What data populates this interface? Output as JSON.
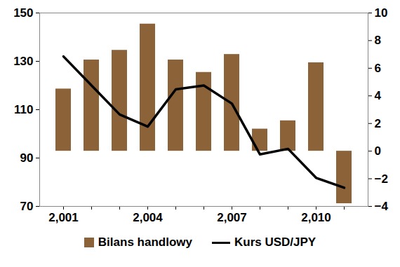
{
  "chart_data": {
    "type": "bar",
    "categories": [
      2001,
      null,
      null,
      2004,
      null,
      null,
      2007,
      null,
      null,
      2010,
      null
    ],
    "series": [
      {
        "name": "Bilans handlowy",
        "type": "bar",
        "color": "#8c6239",
        "axis": "y2",
        "values": [
          4.5,
          6.6,
          7.3,
          9.2,
          6.6,
          5.7,
          7.0,
          1.6,
          2.2,
          6.4,
          -3.8
        ]
      },
      {
        "name": "Kurs USD/JPY",
        "type": "line",
        "color": "#000000",
        "values": [
          132,
          120,
          108,
          103,
          118.4,
          120,
          112.5,
          91.5,
          93.8,
          81.8,
          77.7
        ]
      }
    ],
    "ylim": [
      70,
      150
    ],
    "yticks": [
      70,
      90,
      110,
      130,
      150
    ],
    "y2lim": [
      -4,
      10
    ],
    "y2ticks": [
      -4,
      -2,
      0,
      2,
      4,
      6,
      8,
      10
    ],
    "legend": "bottom"
  }
}
